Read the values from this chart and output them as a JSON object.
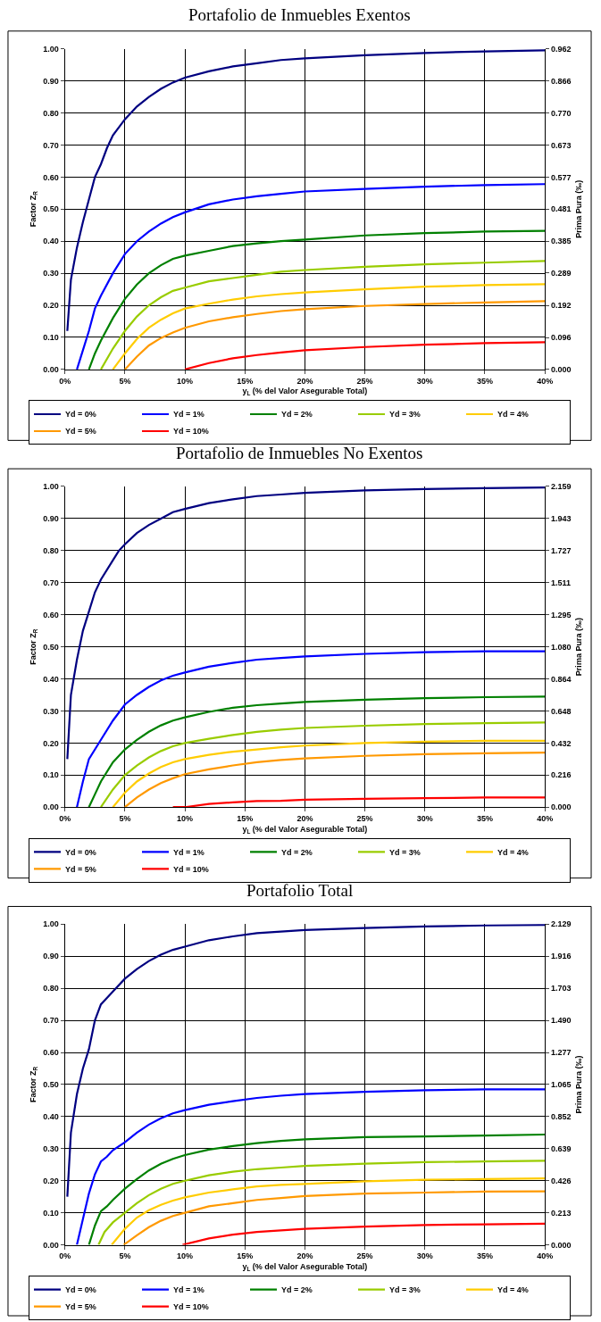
{
  "chart_data": [
    {
      "type": "line",
      "title": "Portafolio de Inmuebles Exentos",
      "xlabel": "y$_{L}$ (% del Valor Asegurable Total)",
      "ylabel": "Factor Z$_{R}$",
      "y2label": "Prima Pura (‰)",
      "xlim": [
        0,
        40
      ],
      "xticks": [
        {
          "value": 0,
          "label": "0%"
        },
        {
          "value": 5,
          "label": "5%"
        },
        {
          "value": 10,
          "label": "10%"
        },
        {
          "value": 15,
          "label": "15%"
        },
        {
          "value": 20,
          "label": "20%"
        },
        {
          "value": 25,
          "label": "25%"
        },
        {
          "value": 30,
          "label": "30%"
        },
        {
          "value": 35,
          "label": "35%"
        },
        {
          "value": 40,
          "label": "40%"
        }
      ],
      "ylim": [
        0,
        1
      ],
      "yticks": [
        {
          "value": 0,
          "label": "0.00"
        },
        {
          "value": 0.1,
          "label": "0.10"
        },
        {
          "value": 0.2,
          "label": "0.20"
        },
        {
          "value": 0.3,
          "label": "0.30"
        },
        {
          "value": 0.4,
          "label": "0.40"
        },
        {
          "value": 0.5,
          "label": "0.50"
        },
        {
          "value": 0.6,
          "label": "0.60"
        },
        {
          "value": 0.7,
          "label": "0.70"
        },
        {
          "value": 0.8,
          "label": "0.80"
        },
        {
          "value": 0.9,
          "label": "0.90"
        },
        {
          "value": 1,
          "label": "1.00"
        }
      ],
      "y2lim": [
        0,
        0.962
      ],
      "y2ticks": [
        {
          "value": 0,
          "label": "0.000"
        },
        {
          "value": 0.096,
          "label": "0.096"
        },
        {
          "value": 0.192,
          "label": "0.192"
        },
        {
          "value": 0.289,
          "label": "0.289"
        },
        {
          "value": 0.385,
          "label": "0.385"
        },
        {
          "value": 0.481,
          "label": "0.481"
        },
        {
          "value": 0.577,
          "label": "0.577"
        },
        {
          "value": 0.673,
          "label": "0.673"
        },
        {
          "value": 0.77,
          "label": "0.770"
        },
        {
          "value": 0.866,
          "label": "0.866"
        },
        {
          "value": 0.962,
          "label": "0.962"
        }
      ],
      "grid": true,
      "legend": "bottom",
      "marker": "none",
      "line_style": "solid",
      "series": [
        {
          "name": "Yd = 0%",
          "color": "#000080",
          "x": [
            0.2,
            0.5,
            1,
            1.5,
            2,
            2.5,
            3,
            3.5,
            4,
            5,
            6,
            7,
            8,
            9,
            10,
            12,
            14,
            16,
            18,
            20,
            25,
            30,
            35,
            40
          ],
          "values": [
            0.12,
            0.28,
            0.38,
            0.46,
            0.53,
            0.6,
            0.64,
            0.69,
            0.73,
            0.78,
            0.82,
            0.85,
            0.875,
            0.895,
            0.91,
            0.93,
            0.945,
            0.955,
            0.965,
            0.97,
            0.98,
            0.987,
            0.992,
            0.995
          ]
        },
        {
          "name": "Yd = 1%",
          "color": "#0000ff",
          "x": [
            1,
            1.5,
            2,
            2.5,
            3,
            4,
            5,
            6,
            7,
            8,
            9,
            10,
            12,
            14,
            16,
            18,
            20,
            25,
            30,
            35,
            40
          ],
          "values": [
            0,
            0.06,
            0.12,
            0.19,
            0.23,
            0.3,
            0.36,
            0.4,
            0.43,
            0.455,
            0.475,
            0.49,
            0.515,
            0.53,
            0.54,
            0.548,
            0.555,
            0.563,
            0.57,
            0.575,
            0.578
          ]
        },
        {
          "name": "Yd = 2%",
          "color": "#008000",
          "x": [
            2,
            2.5,
            3,
            4,
            5,
            6,
            7,
            8,
            9,
            10,
            12,
            14,
            16,
            18,
            20,
            25,
            30,
            35,
            40
          ],
          "values": [
            0,
            0.05,
            0.09,
            0.16,
            0.22,
            0.265,
            0.3,
            0.325,
            0.345,
            0.355,
            0.37,
            0.385,
            0.393,
            0.4,
            0.405,
            0.418,
            0.425,
            0.43,
            0.432
          ]
        },
        {
          "name": "Yd = 3%",
          "color": "#99cc00",
          "x": [
            3,
            4,
            5,
            6,
            7,
            8,
            9,
            10,
            12,
            14,
            16,
            18,
            20,
            25,
            30,
            35,
            40
          ],
          "values": [
            0,
            0.065,
            0.12,
            0.165,
            0.2,
            0.225,
            0.245,
            0.255,
            0.275,
            0.285,
            0.295,
            0.305,
            0.31,
            0.32,
            0.328,
            0.333,
            0.338
          ]
        },
        {
          "name": "Yd = 4%",
          "color": "#ffcc00",
          "x": [
            4,
            5,
            6,
            7,
            8,
            9,
            10,
            12,
            14,
            16,
            18,
            20,
            25,
            30,
            35,
            40
          ],
          "values": [
            0,
            0.05,
            0.095,
            0.13,
            0.155,
            0.175,
            0.19,
            0.205,
            0.218,
            0.228,
            0.235,
            0.24,
            0.25,
            0.258,
            0.263,
            0.266
          ]
        },
        {
          "name": "Yd = 5%",
          "color": "#ff9900",
          "x": [
            5,
            6,
            7,
            8,
            9,
            10,
            12,
            14,
            16,
            18,
            20,
            25,
            30,
            35,
            40
          ],
          "values": [
            0,
            0.04,
            0.075,
            0.098,
            0.115,
            0.13,
            0.15,
            0.163,
            0.173,
            0.182,
            0.188,
            0.198,
            0.204,
            0.209,
            0.213
          ]
        },
        {
          "name": "Yd = 10%",
          "color": "#ff0000",
          "x": [
            10,
            12,
            14,
            16,
            18,
            20,
            25,
            30,
            35,
            40
          ],
          "values": [
            0,
            0.02,
            0.035,
            0.045,
            0.053,
            0.06,
            0.07,
            0.077,
            0.082,
            0.085
          ]
        }
      ]
    },
    {
      "type": "line",
      "title": "Portafolio de Inmuebles No Exentos",
      "xlabel": "y$_{L}$ (% del Valor Asegurable Total)",
      "ylabel": "Factor Z$_{R}$",
      "y2label": "Prima Pura (‰)",
      "xlim": [
        0,
        40
      ],
      "xticks": [
        {
          "value": 0,
          "label": "0%"
        },
        {
          "value": 5,
          "label": "5%"
        },
        {
          "value": 10,
          "label": "10%"
        },
        {
          "value": 15,
          "label": "15%"
        },
        {
          "value": 20,
          "label": "20%"
        },
        {
          "value": 25,
          "label": "25%"
        },
        {
          "value": 30,
          "label": "30%"
        },
        {
          "value": 35,
          "label": "35%"
        },
        {
          "value": 40,
          "label": "40%"
        }
      ],
      "ylim": [
        0,
        1
      ],
      "yticks": [
        {
          "value": 0,
          "label": "0.00"
        },
        {
          "value": 0.1,
          "label": "0.10"
        },
        {
          "value": 0.2,
          "label": "0.20"
        },
        {
          "value": 0.3,
          "label": "0.30"
        },
        {
          "value": 0.4,
          "label": "0.40"
        },
        {
          "value": 0.5,
          "label": "0.50"
        },
        {
          "value": 0.6,
          "label": "0.60"
        },
        {
          "value": 0.7,
          "label": "0.70"
        },
        {
          "value": 0.8,
          "label": "0.80"
        },
        {
          "value": 0.9,
          "label": "0.90"
        },
        {
          "value": 1,
          "label": "1.00"
        }
      ],
      "y2lim": [
        0,
        2.159
      ],
      "y2ticks": [
        {
          "value": 0,
          "label": "0.000"
        },
        {
          "value": 0.216,
          "label": "0.216"
        },
        {
          "value": 0.432,
          "label": "0.432"
        },
        {
          "value": 0.648,
          "label": "0.648"
        },
        {
          "value": 0.864,
          "label": "0.864"
        },
        {
          "value": 1.08,
          "label": "1.080"
        },
        {
          "value": 1.295,
          "label": "1.295"
        },
        {
          "value": 1.511,
          "label": "1.511"
        },
        {
          "value": 1.727,
          "label": "1.727"
        },
        {
          "value": 1.943,
          "label": "1.943"
        },
        {
          "value": 2.159,
          "label": "2.159"
        }
      ],
      "grid": true,
      "legend": "bottom",
      "marker": "none",
      "line_style": "solid",
      "series": [
        {
          "name": "Yd = 0%",
          "color": "#000080",
          "x": [
            0.2,
            0.5,
            1,
            1.5,
            2,
            2.5,
            3,
            4,
            4.5,
            5,
            6,
            7,
            8,
            9,
            10,
            12,
            14,
            16,
            18,
            20,
            25,
            30,
            35,
            40
          ],
          "values": [
            0.15,
            0.35,
            0.46,
            0.55,
            0.61,
            0.67,
            0.71,
            0.77,
            0.8,
            0.82,
            0.855,
            0.88,
            0.9,
            0.92,
            0.93,
            0.948,
            0.96,
            0.97,
            0.975,
            0.98,
            0.988,
            0.992,
            0.995,
            0.997
          ]
        },
        {
          "name": "Yd = 1%",
          "color": "#0000ff",
          "x": [
            1,
            1.5,
            2,
            3,
            4,
            5,
            6,
            7,
            8,
            9,
            10,
            12,
            14,
            16,
            18,
            20,
            25,
            30,
            35,
            40
          ],
          "values": [
            0,
            0.08,
            0.15,
            0.21,
            0.27,
            0.32,
            0.35,
            0.375,
            0.395,
            0.41,
            0.42,
            0.438,
            0.45,
            0.46,
            0.465,
            0.47,
            0.478,
            0.483,
            0.486,
            0.486
          ]
        },
        {
          "name": "Yd = 2%",
          "color": "#008000",
          "x": [
            2,
            2.5,
            3,
            4,
            5,
            6,
            7,
            8,
            9,
            10,
            12,
            14,
            16,
            18,
            20,
            25,
            30,
            35,
            40
          ],
          "values": [
            0,
            0.04,
            0.08,
            0.14,
            0.18,
            0.21,
            0.235,
            0.255,
            0.27,
            0.28,
            0.297,
            0.31,
            0.318,
            0.323,
            0.328,
            0.335,
            0.34,
            0.343,
            0.345
          ]
        },
        {
          "name": "Yd = 3%",
          "color": "#99cc00",
          "x": [
            3,
            4,
            5,
            6,
            7,
            8,
            9,
            10,
            12,
            14,
            16,
            18,
            20,
            25,
            30,
            35,
            40
          ],
          "values": [
            0,
            0.055,
            0.1,
            0.13,
            0.155,
            0.175,
            0.19,
            0.2,
            0.213,
            0.225,
            0.235,
            0.242,
            0.247,
            0.254,
            0.259,
            0.262,
            0.264
          ]
        },
        {
          "name": "Yd = 4%",
          "color": "#ffcc00",
          "x": [
            4,
            5,
            6,
            7,
            8,
            9,
            10,
            12,
            14,
            16,
            18,
            20,
            25,
            30,
            35,
            40
          ],
          "values": [
            0,
            0.045,
            0.08,
            0.105,
            0.125,
            0.14,
            0.15,
            0.163,
            0.173,
            0.18,
            0.187,
            0.192,
            0.2,
            0.204,
            0.207,
            0.207
          ]
        },
        {
          "name": "Yd = 5%",
          "color": "#ff9900",
          "x": [
            5,
            6,
            7,
            8,
            9,
            10,
            12,
            14,
            16,
            18,
            20,
            25,
            30,
            35,
            40
          ],
          "values": [
            0,
            0.03,
            0.055,
            0.075,
            0.09,
            0.103,
            0.118,
            0.13,
            0.14,
            0.147,
            0.152,
            0.16,
            0.165,
            0.168,
            0.17
          ]
        },
        {
          "name": "Yd = 10%",
          "color": "#ff0000",
          "x": [
            9,
            10,
            12,
            14,
            16,
            18,
            20,
            25,
            30,
            35,
            40
          ],
          "values": [
            0,
            0,
            0.01,
            0.015,
            0.019,
            0.02,
            0.023,
            0.026,
            0.028,
            0.03,
            0.03
          ]
        }
      ]
    },
    {
      "type": "line",
      "title": "Portafolio Total",
      "xlabel": "y$_{L}$ (% del Valor Asegurable Total)",
      "ylabel": "Factor Z$_{R}$",
      "y2label": "Prima Pura (‰)",
      "xlim": [
        0,
        40
      ],
      "xticks": [
        {
          "value": 0,
          "label": "0%"
        },
        {
          "value": 5,
          "label": "5%"
        },
        {
          "value": 10,
          "label": "10%"
        },
        {
          "value": 15,
          "label": "15%"
        },
        {
          "value": 20,
          "label": "20%"
        },
        {
          "value": 25,
          "label": "25%"
        },
        {
          "value": 30,
          "label": "30%"
        },
        {
          "value": 35,
          "label": "35%"
        },
        {
          "value": 40,
          "label": "40%"
        }
      ],
      "ylim": [
        0,
        1
      ],
      "yticks": [
        {
          "value": 0,
          "label": "0.00"
        },
        {
          "value": 0.1,
          "label": "0.10"
        },
        {
          "value": 0.2,
          "label": "0.20"
        },
        {
          "value": 0.3,
          "label": "0.30"
        },
        {
          "value": 0.4,
          "label": "0.40"
        },
        {
          "value": 0.5,
          "label": "0.50"
        },
        {
          "value": 0.6,
          "label": "0.60"
        },
        {
          "value": 0.7,
          "label": "0.70"
        },
        {
          "value": 0.8,
          "label": "0.80"
        },
        {
          "value": 0.9,
          "label": "0.90"
        },
        {
          "value": 1,
          "label": "1.00"
        }
      ],
      "y2lim": [
        0,
        2.129
      ],
      "y2ticks": [
        {
          "value": 0,
          "label": "0.000"
        },
        {
          "value": 0.213,
          "label": "0.213"
        },
        {
          "value": 0.426,
          "label": "0.426"
        },
        {
          "value": 0.639,
          "label": "0.639"
        },
        {
          "value": 0.852,
          "label": "0.852"
        },
        {
          "value": 1.065,
          "label": "1.065"
        },
        {
          "value": 1.277,
          "label": "1.277"
        },
        {
          "value": 1.49,
          "label": "1.490"
        },
        {
          "value": 1.703,
          "label": "1.703"
        },
        {
          "value": 1.916,
          "label": "1.916"
        },
        {
          "value": 2.129,
          "label": "2.129"
        }
      ],
      "grid": true,
      "legend": "bottom",
      "marker": "none",
      "line_style": "solid",
      "series": [
        {
          "name": "Yd = 0%",
          "color": "#000080",
          "x": [
            0.2,
            0.5,
            1,
            1.5,
            2,
            2.5,
            3,
            3.5,
            4,
            5,
            6,
            7,
            8,
            9,
            10,
            12,
            14,
            16,
            18,
            20,
            25,
            30,
            35,
            40
          ],
          "values": [
            0.15,
            0.35,
            0.47,
            0.55,
            0.61,
            0.7,
            0.75,
            0.77,
            0.79,
            0.83,
            0.86,
            0.885,
            0.905,
            0.92,
            0.93,
            0.95,
            0.962,
            0.972,
            0.977,
            0.982,
            0.988,
            0.993,
            0.996,
            0.998
          ]
        },
        {
          "name": "Yd = 1%",
          "color": "#0000ff",
          "x": [
            1,
            1.5,
            2,
            2.5,
            3,
            3.5,
            4,
            5,
            6,
            7,
            8,
            9,
            10,
            12,
            14,
            16,
            18,
            20,
            25,
            30,
            35,
            40
          ],
          "values": [
            0,
            0.08,
            0.16,
            0.22,
            0.26,
            0.275,
            0.295,
            0.32,
            0.35,
            0.375,
            0.395,
            0.41,
            0.42,
            0.437,
            0.448,
            0.458,
            0.465,
            0.47,
            0.477,
            0.482,
            0.485,
            0.485
          ]
        },
        {
          "name": "Yd = 2%",
          "color": "#008000",
          "x": [
            2,
            2.5,
            3,
            3.5,
            4,
            5,
            6,
            7,
            8,
            9,
            10,
            12,
            14,
            16,
            18,
            20,
            25,
            30,
            35,
            40
          ],
          "values": [
            0,
            0.06,
            0.105,
            0.12,
            0.14,
            0.175,
            0.205,
            0.232,
            0.253,
            0.268,
            0.28,
            0.297,
            0.308,
            0.317,
            0.324,
            0.329,
            0.336,
            0.338,
            0.341,
            0.344
          ]
        },
        {
          "name": "Yd = 3%",
          "color": "#99cc00",
          "x": [
            2.8,
            3.3,
            4,
            5,
            6,
            7,
            8,
            9,
            10,
            12,
            14,
            16,
            18,
            20,
            25,
            30,
            35,
            40
          ],
          "values": [
            0,
            0.04,
            0.07,
            0.1,
            0.13,
            0.155,
            0.175,
            0.19,
            0.2,
            0.217,
            0.228,
            0.236,
            0.241,
            0.246,
            0.253,
            0.258,
            0.26,
            0.262
          ]
        },
        {
          "name": "Yd = 4%",
          "color": "#ffcc00",
          "x": [
            3.9,
            5,
            6,
            7,
            8,
            9,
            10,
            12,
            14,
            16,
            18,
            20,
            25,
            30,
            35,
            40
          ],
          "values": [
            0,
            0.05,
            0.085,
            0.108,
            0.125,
            0.138,
            0.148,
            0.163,
            0.173,
            0.182,
            0.187,
            0.19,
            0.198,
            0.203,
            0.205,
            0.207
          ]
        },
        {
          "name": "Yd = 5%",
          "color": "#ff9900",
          "x": [
            4.9,
            6,
            7,
            8,
            9,
            10,
            12,
            14,
            16,
            18,
            20,
            25,
            30,
            35,
            40
          ],
          "values": [
            0,
            0.03,
            0.055,
            0.075,
            0.09,
            0.1,
            0.12,
            0.13,
            0.14,
            0.146,
            0.152,
            0.16,
            0.163,
            0.166,
            0.167
          ]
        },
        {
          "name": "Yd = 10%",
          "color": "#ff0000",
          "x": [
            9.8,
            12,
            14,
            16,
            18,
            20,
            25,
            30,
            35,
            40
          ],
          "values": [
            0,
            0.02,
            0.032,
            0.04,
            0.045,
            0.05,
            0.057,
            0.062,
            0.064,
            0.066
          ]
        }
      ]
    }
  ]
}
